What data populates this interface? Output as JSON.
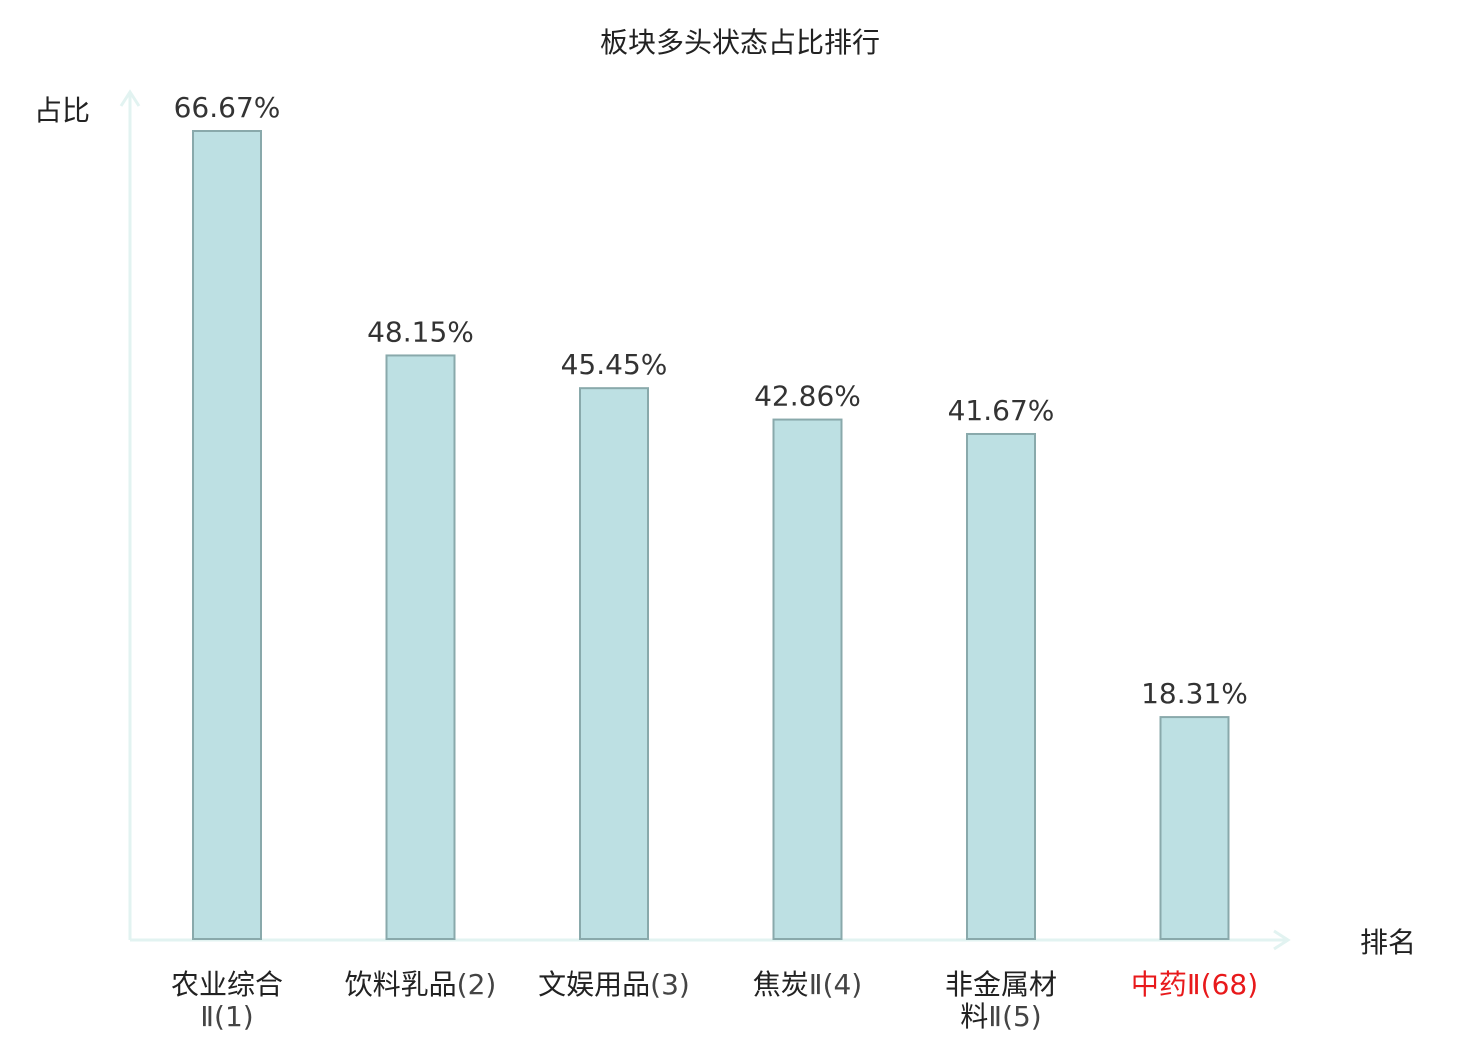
{
  "chart_data": {
    "type": "bar",
    "title": "板块多头状态占比排行",
    "xlabel": "排名",
    "ylabel": "占比",
    "ylim": [
      0,
      70
    ],
    "grid": false,
    "legend": "none",
    "categories": [
      {
        "name": "农业综合",
        "rank": "Ⅱ(1)",
        "highlight": false
      },
      {
        "name": "饮料乳品",
        "rank": "(2)",
        "highlight": false
      },
      {
        "name": "文娱用品",
        "rank": "(3)",
        "highlight": false
      },
      {
        "name": "焦炭",
        "rank": "Ⅱ(4)",
        "highlight": false
      },
      {
        "name": "非金属材料",
        "rank": "Ⅱ(5)",
        "highlight": false
      },
      {
        "name": "中药",
        "rank": "Ⅱ(68)",
        "highlight": true
      }
    ],
    "values": [
      66.67,
      48.15,
      45.45,
      42.86,
      41.67,
      18.31
    ],
    "value_labels": [
      "66.67%",
      "48.15%",
      "45.45%",
      "42.86%",
      "41.67%",
      "18.31%"
    ],
    "colors": {
      "bar_fill": "#bde0e3",
      "bar_stroke": "#89a9ab",
      "axis": "#e2f3f1",
      "text": "#222222",
      "value_text": "#333333",
      "rank_text": "#444444",
      "highlight": "#e8191b"
    }
  }
}
